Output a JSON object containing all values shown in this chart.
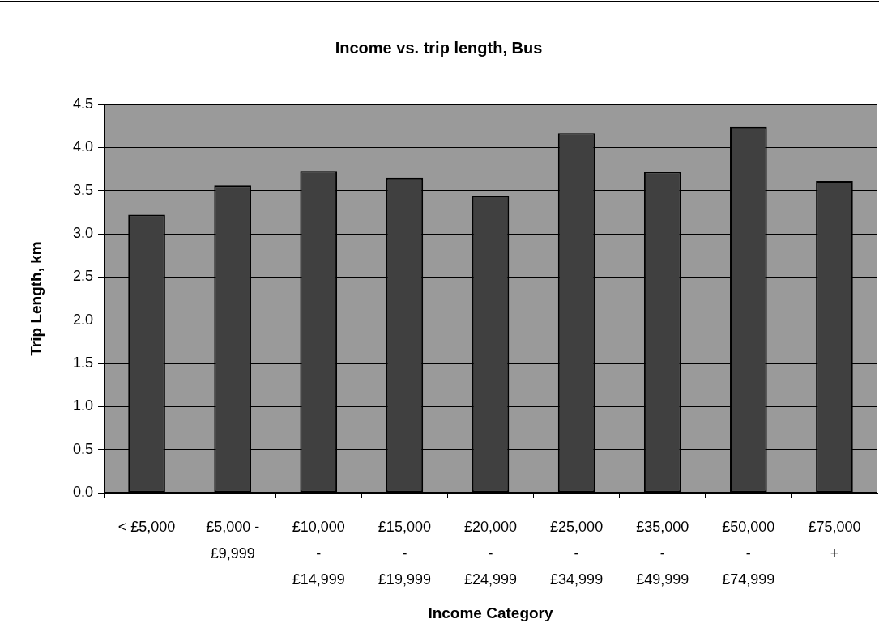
{
  "chart_data": {
    "type": "bar",
    "title": "Income vs. trip length, Bus",
    "xlabel": "Income Category",
    "ylabel": "Trip Length, km",
    "categories": [
      "< £5,000",
      "£5,000 - £9,999",
      "£10,000 - £14,999",
      "£15,000 - £19,999",
      "£20,000 - £24,999",
      "£25,000 - £34,999",
      "£35,000 - £49,999",
      "£50,000 - £74,999",
      "£75,000 +"
    ],
    "values": [
      3.22,
      3.56,
      3.73,
      3.65,
      3.44,
      4.17,
      3.72,
      4.24,
      3.61
    ],
    "color": "#404040",
    "ylim": [
      0,
      4.5
    ],
    "yticks": [
      {
        "value": 0,
        "label": "0.0"
      },
      0.5,
      {
        "value": 1,
        "label": "1.0"
      },
      1.5,
      {
        "value": 2,
        "label": "2.0"
      },
      2.5,
      {
        "value": 3,
        "label": "3.0"
      },
      3.5,
      {
        "value": 4,
        "label": "4.0"
      },
      4.5
    ],
    "grid": "y"
  }
}
